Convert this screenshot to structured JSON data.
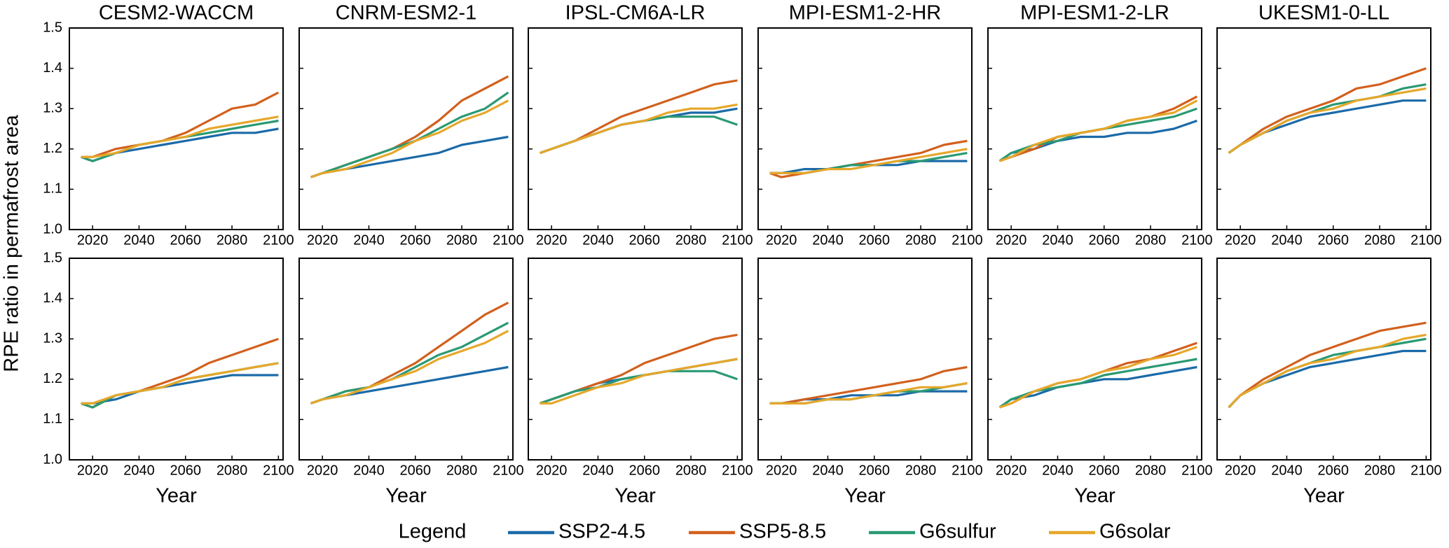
{
  "chart_data": {
    "type": "line",
    "ylabel": "RPE ratio in permafrost area",
    "xlabel": "Year",
    "x": [
      2015,
      2020,
      2030,
      2040,
      2050,
      2060,
      2070,
      2080,
      2090,
      2100
    ],
    "xlim": [
      2010,
      2102
    ],
    "xticks": [
      2020,
      2040,
      2060,
      2080,
      2100
    ],
    "ylim": [
      1.0,
      1.5
    ],
    "yticks": [
      {
        "value": 1.0,
        "label": "1.0"
      },
      1.1,
      1.2,
      1.3,
      1.4,
      1.5
    ],
    "legend": {
      "title": "Legend",
      "entries": [
        {
          "name": "SSP2-4.5",
          "color": "#1b6aa8"
        },
        {
          "name": "SSP5-8.5",
          "color": "#d2601d"
        },
        {
          "name": "G6sulfur",
          "color": "#2a9a72"
        },
        {
          "name": "G6solar",
          "color": "#e6a72a"
        }
      ]
    },
    "panels": [
      {
        "title": "CESM2-WACCM",
        "series": [
          {
            "values": [
              1.18,
              1.17,
              1.19,
              1.2,
              1.21,
              1.22,
              1.23,
              1.24,
              1.24,
              1.25
            ]
          },
          {
            "values": [
              1.18,
              1.18,
              1.2,
              1.21,
              1.22,
              1.24,
              1.27,
              1.3,
              1.31,
              1.34
            ]
          },
          {
            "values": [
              1.18,
              1.17,
              1.19,
              1.21,
              1.22,
              1.23,
              1.24,
              1.25,
              1.26,
              1.27
            ]
          },
          {
            "values": [
              1.18,
              1.18,
              1.19,
              1.21,
              1.22,
              1.23,
              1.25,
              1.26,
              1.27,
              1.28
            ]
          }
        ]
      },
      {
        "title": "CNRM-ESM2-1",
        "series": [
          {
            "values": [
              1.13,
              1.14,
              1.15,
              1.16,
              1.17,
              1.18,
              1.19,
              1.21,
              1.22,
              1.23
            ]
          },
          {
            "values": [
              1.13,
              1.14,
              1.16,
              1.18,
              1.2,
              1.23,
              1.27,
              1.32,
              1.35,
              1.38
            ]
          },
          {
            "values": [
              1.13,
              1.14,
              1.16,
              1.18,
              1.2,
              1.22,
              1.25,
              1.28,
              1.3,
              1.34
            ]
          },
          {
            "values": [
              1.13,
              1.14,
              1.15,
              1.17,
              1.19,
              1.22,
              1.24,
              1.27,
              1.29,
              1.32
            ]
          }
        ]
      },
      {
        "title": "IPSL-CM6A-LR",
        "series": [
          {
            "values": [
              1.19,
              1.2,
              1.22,
              1.24,
              1.26,
              1.27,
              1.28,
              1.29,
              1.29,
              1.3
            ]
          },
          {
            "values": [
              1.19,
              1.2,
              1.22,
              1.25,
              1.28,
              1.3,
              1.32,
              1.34,
              1.36,
              1.37
            ]
          },
          {
            "values": [
              1.19,
              1.2,
              1.22,
              1.24,
              1.26,
              1.27,
              1.28,
              1.28,
              1.28,
              1.26
            ]
          },
          {
            "values": [
              1.19,
              1.2,
              1.22,
              1.24,
              1.26,
              1.27,
              1.29,
              1.3,
              1.3,
              1.31
            ]
          }
        ]
      },
      {
        "title": "MPI-ESM1-2-HR",
        "series": [
          {
            "values": [
              1.14,
              1.14,
              1.15,
              1.15,
              1.16,
              1.16,
              1.16,
              1.17,
              1.17,
              1.17
            ]
          },
          {
            "values": [
              1.14,
              1.13,
              1.14,
              1.15,
              1.16,
              1.17,
              1.18,
              1.19,
              1.21,
              1.22
            ]
          },
          {
            "values": [
              1.14,
              1.14,
              1.14,
              1.15,
              1.16,
              1.16,
              1.17,
              1.17,
              1.18,
              1.19
            ]
          },
          {
            "values": [
              1.14,
              1.14,
              1.14,
              1.15,
              1.15,
              1.16,
              1.17,
              1.18,
              1.19,
              1.2
            ]
          }
        ]
      },
      {
        "title": "MPI-ESM1-2-LR",
        "series": [
          {
            "values": [
              1.17,
              1.19,
              1.2,
              1.22,
              1.23,
              1.23,
              1.24,
              1.24,
              1.25,
              1.27
            ]
          },
          {
            "values": [
              1.17,
              1.18,
              1.2,
              1.23,
              1.24,
              1.25,
              1.27,
              1.28,
              1.3,
              1.33
            ]
          },
          {
            "values": [
              1.17,
              1.19,
              1.21,
              1.22,
              1.24,
              1.25,
              1.26,
              1.27,
              1.28,
              1.3
            ]
          },
          {
            "values": [
              1.17,
              1.18,
              1.21,
              1.23,
              1.24,
              1.25,
              1.27,
              1.28,
              1.29,
              1.32
            ]
          }
        ]
      },
      {
        "title": "UKESM1-0-LL",
        "series": [
          {
            "values": [
              1.19,
              1.21,
              1.24,
              1.26,
              1.28,
              1.29,
              1.3,
              1.31,
              1.32,
              1.32
            ]
          },
          {
            "values": [
              1.19,
              1.21,
              1.25,
              1.28,
              1.3,
              1.32,
              1.35,
              1.36,
              1.38,
              1.4
            ]
          },
          {
            "values": [
              1.19,
              1.21,
              1.24,
              1.27,
              1.29,
              1.31,
              1.32,
              1.33,
              1.35,
              1.36
            ]
          },
          {
            "values": [
              1.19,
              1.21,
              1.24,
              1.27,
              1.29,
              1.3,
              1.32,
              1.33,
              1.34,
              1.35
            ]
          }
        ]
      },
      {
        "series": [
          {
            "values": [
              1.14,
              1.14,
              1.15,
              1.17,
              1.18,
              1.19,
              1.2,
              1.21,
              1.21,
              1.21
            ]
          },
          {
            "values": [
              1.14,
              1.13,
              1.16,
              1.17,
              1.19,
              1.21,
              1.24,
              1.26,
              1.28,
              1.3
            ]
          },
          {
            "values": [
              1.14,
              1.13,
              1.16,
              1.17,
              1.18,
              1.2,
              1.21,
              1.22,
              1.23,
              1.24
            ]
          },
          {
            "values": [
              1.14,
              1.14,
              1.16,
              1.17,
              1.18,
              1.2,
              1.21,
              1.22,
              1.23,
              1.24
            ]
          }
        ]
      },
      {
        "series": [
          {
            "values": [
              1.14,
              1.15,
              1.16,
              1.17,
              1.18,
              1.19,
              1.2,
              1.21,
              1.22,
              1.23
            ]
          },
          {
            "values": [
              1.14,
              1.15,
              1.17,
              1.18,
              1.21,
              1.24,
              1.28,
              1.32,
              1.36,
              1.39
            ]
          },
          {
            "values": [
              1.14,
              1.15,
              1.17,
              1.18,
              1.2,
              1.23,
              1.26,
              1.28,
              1.31,
              1.34
            ]
          },
          {
            "values": [
              1.14,
              1.15,
              1.16,
              1.18,
              1.2,
              1.22,
              1.25,
              1.27,
              1.29,
              1.32
            ]
          }
        ]
      },
      {
        "series": [
          {
            "values": [
              1.14,
              1.15,
              1.17,
              1.19,
              1.2,
              1.21,
              1.22,
              1.23,
              1.24,
              1.25
            ]
          },
          {
            "values": [
              1.14,
              1.15,
              1.17,
              1.19,
              1.21,
              1.24,
              1.26,
              1.28,
              1.3,
              1.31
            ]
          },
          {
            "values": [
              1.14,
              1.15,
              1.17,
              1.18,
              1.2,
              1.21,
              1.22,
              1.22,
              1.22,
              1.2
            ]
          },
          {
            "values": [
              1.14,
              1.14,
              1.16,
              1.18,
              1.19,
              1.21,
              1.22,
              1.23,
              1.24,
              1.25
            ]
          }
        ]
      },
      {
        "series": [
          {
            "values": [
              1.14,
              1.14,
              1.15,
              1.15,
              1.16,
              1.16,
              1.16,
              1.17,
              1.17,
              1.17
            ]
          },
          {
            "values": [
              1.14,
              1.14,
              1.15,
              1.16,
              1.17,
              1.18,
              1.19,
              1.2,
              1.22,
              1.23
            ]
          },
          {
            "values": [
              1.14,
              1.14,
              1.14,
              1.15,
              1.15,
              1.16,
              1.17,
              1.17,
              1.18,
              1.19
            ]
          },
          {
            "values": [
              1.14,
              1.14,
              1.14,
              1.15,
              1.15,
              1.16,
              1.17,
              1.18,
              1.18,
              1.19
            ]
          }
        ]
      },
      {
        "series": [
          {
            "values": [
              1.13,
              1.15,
              1.16,
              1.18,
              1.19,
              1.2,
              1.2,
              1.21,
              1.22,
              1.23
            ]
          },
          {
            "values": [
              1.13,
              1.14,
              1.17,
              1.19,
              1.2,
              1.22,
              1.24,
              1.25,
              1.27,
              1.29
            ]
          },
          {
            "values": [
              1.13,
              1.15,
              1.17,
              1.18,
              1.19,
              1.21,
              1.22,
              1.23,
              1.24,
              1.25
            ]
          },
          {
            "values": [
              1.13,
              1.14,
              1.17,
              1.19,
              1.2,
              1.22,
              1.23,
              1.25,
              1.26,
              1.28
            ]
          }
        ]
      },
      {
        "series": [
          {
            "values": [
              1.13,
              1.16,
              1.19,
              1.21,
              1.23,
              1.24,
              1.25,
              1.26,
              1.27,
              1.27
            ]
          },
          {
            "values": [
              1.13,
              1.16,
              1.2,
              1.23,
              1.26,
              1.28,
              1.3,
              1.32,
              1.33,
              1.34
            ]
          },
          {
            "values": [
              1.13,
              1.16,
              1.19,
              1.22,
              1.24,
              1.26,
              1.27,
              1.28,
              1.29,
              1.3
            ]
          },
          {
            "values": [
              1.13,
              1.16,
              1.19,
              1.22,
              1.24,
              1.25,
              1.27,
              1.28,
              1.3,
              1.31
            ]
          }
        ]
      }
    ]
  }
}
